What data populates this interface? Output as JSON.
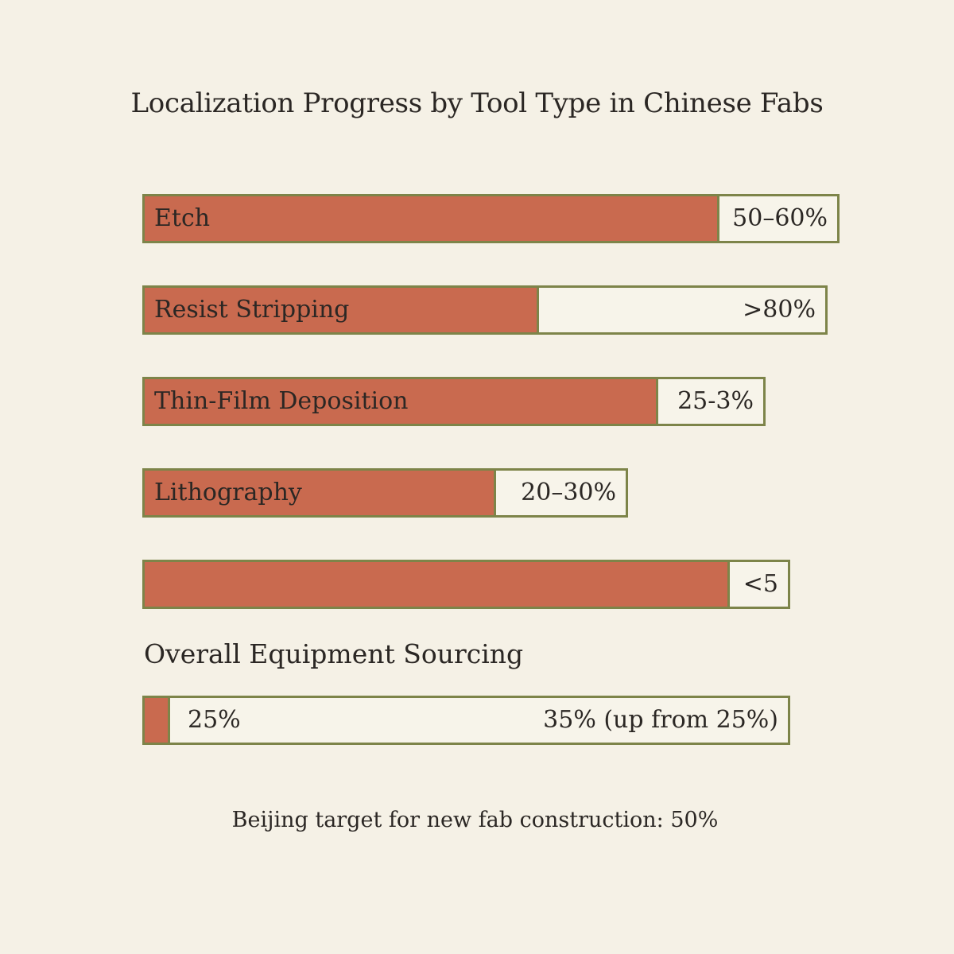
{
  "chart_data": {
    "type": "bar",
    "orientation": "horizontal",
    "title": "Localization Progress by Tool Type in Chinese Fabs",
    "categories": [
      "Etch",
      "Resist Stripping",
      "Thin-Film Deposition",
      "Lithography",
      ""
    ],
    "value_labels": [
      "50–60%",
      ">80%",
      "25-3%",
      "20–30%",
      "<5"
    ],
    "fill_fraction": [
      0.83,
      0.58,
      0.83,
      0.73,
      0.91
    ],
    "bar_length_fraction": [
      1.0,
      0.983,
      0.894,
      0.697,
      0.929
    ],
    "colors": {
      "fill": "#c96a4f",
      "border": "#7d8449",
      "track": "#f7f4ea",
      "background": "#f5f1e6"
    },
    "overall": {
      "title": "Overall Equipment Sourcing",
      "left_label": "25%",
      "right_label": "35% (up from 25%)",
      "fill_fraction": 0.04
    },
    "footnote": "Beijing target for new fab construction: 50%"
  }
}
